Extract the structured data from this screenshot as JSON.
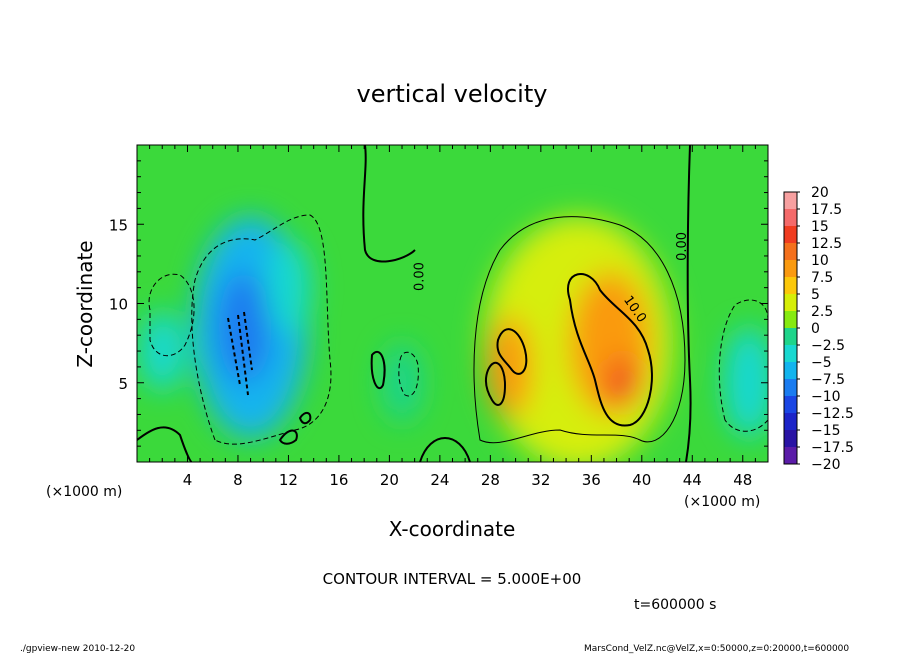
{
  "chart_data": {
    "type": "heatmap",
    "title": "vertical velocity",
    "xlabel": "X-coordinate",
    "ylabel": "Z-coordinate",
    "x_unit_label": "(×1000 m)",
    "x_unit_label_2": "(×1000 m)",
    "xlim": [
      0,
      50
    ],
    "ylim": [
      0,
      20
    ],
    "x_ticks": [
      4,
      8,
      12,
      16,
      20,
      24,
      28,
      32,
      36,
      40,
      44,
      48
    ],
    "x_tick_labels": [
      "4",
      "8",
      "12",
      "16",
      "20",
      "24",
      "28",
      "32",
      "36",
      "40",
      "44",
      "48"
    ],
    "y_ticks": [
      5,
      10,
      15
    ],
    "y_tick_labels": [
      "5",
      "10",
      "15"
    ],
    "contour_labels": [
      {
        "text": "0.00",
        "x": 22.7,
        "y": 11.7,
        "angle": -90
      },
      {
        "text": "0.00",
        "x": 43.5,
        "y": 13.6,
        "angle": -90
      },
      {
        "text": "10.0",
        "x": 39.2,
        "y": 9.5,
        "angle": 55
      }
    ],
    "contour_interval_text": "CONTOUR INTERVAL =  5.000E+00",
    "time_text": "t=600000  s",
    "colorbar": {
      "levels": [
        "20",
        "17.5",
        "15",
        "12.5",
        "10",
        "7.5",
        "5",
        "2.5",
        "0",
        "−2.5",
        "−5",
        "−7.5",
        "−10",
        "−12.5",
        "−15",
        "−17.5",
        "−20"
      ],
      "colors": [
        "#f7a0a0",
        "#f46a6a",
        "#f03c20",
        "#f4701c",
        "#fa9a10",
        "#fcc80a",
        "#d6ee08",
        "#86ea10",
        "#3bd93b",
        "#1ed48a",
        "#18d8d0",
        "#12b4ee",
        "#1a7cf0",
        "#1a46e4",
        "#1c24c8",
        "#2a14a4",
        "#5b1ca8"
      ]
    },
    "field_blobs": [
      {
        "x": 9,
        "y": 8.5,
        "rx": 4.5,
        "ry": 7,
        "value": -8
      },
      {
        "x": 8.5,
        "y": 8.5,
        "rx": 2.2,
        "ry": 3.5,
        "value": -11
      },
      {
        "x": 12,
        "y": 11,
        "rx": 1.8,
        "ry": 3,
        "value": -6
      },
      {
        "x": 2,
        "y": 7,
        "rx": 1.8,
        "ry": 2.5,
        "value": -4
      },
      {
        "x": 35,
        "y": 7.5,
        "rx": 7.5,
        "ry": 8,
        "value": 6
      },
      {
        "x": 37.5,
        "y": 7.5,
        "rx": 3.2,
        "ry": 4.5,
        "value": 11
      },
      {
        "x": 29.5,
        "y": 6,
        "rx": 1.8,
        "ry": 3.2,
        "value": 10
      },
      {
        "x": 38.5,
        "y": 5,
        "rx": 1.2,
        "ry": 1.6,
        "value": 15
      },
      {
        "x": 48.5,
        "y": 5,
        "rx": 2,
        "ry": 3.5,
        "value": -6
      },
      {
        "x": 21,
        "y": 5,
        "rx": 1.6,
        "ry": 2.5,
        "value": -3
      }
    ],
    "footer_left": "./gpview-new   2010-12-20",
    "footer_right": "MarsCond_VelZ.nc@VelZ,x=0:50000,z=0:20000,t=600000"
  }
}
